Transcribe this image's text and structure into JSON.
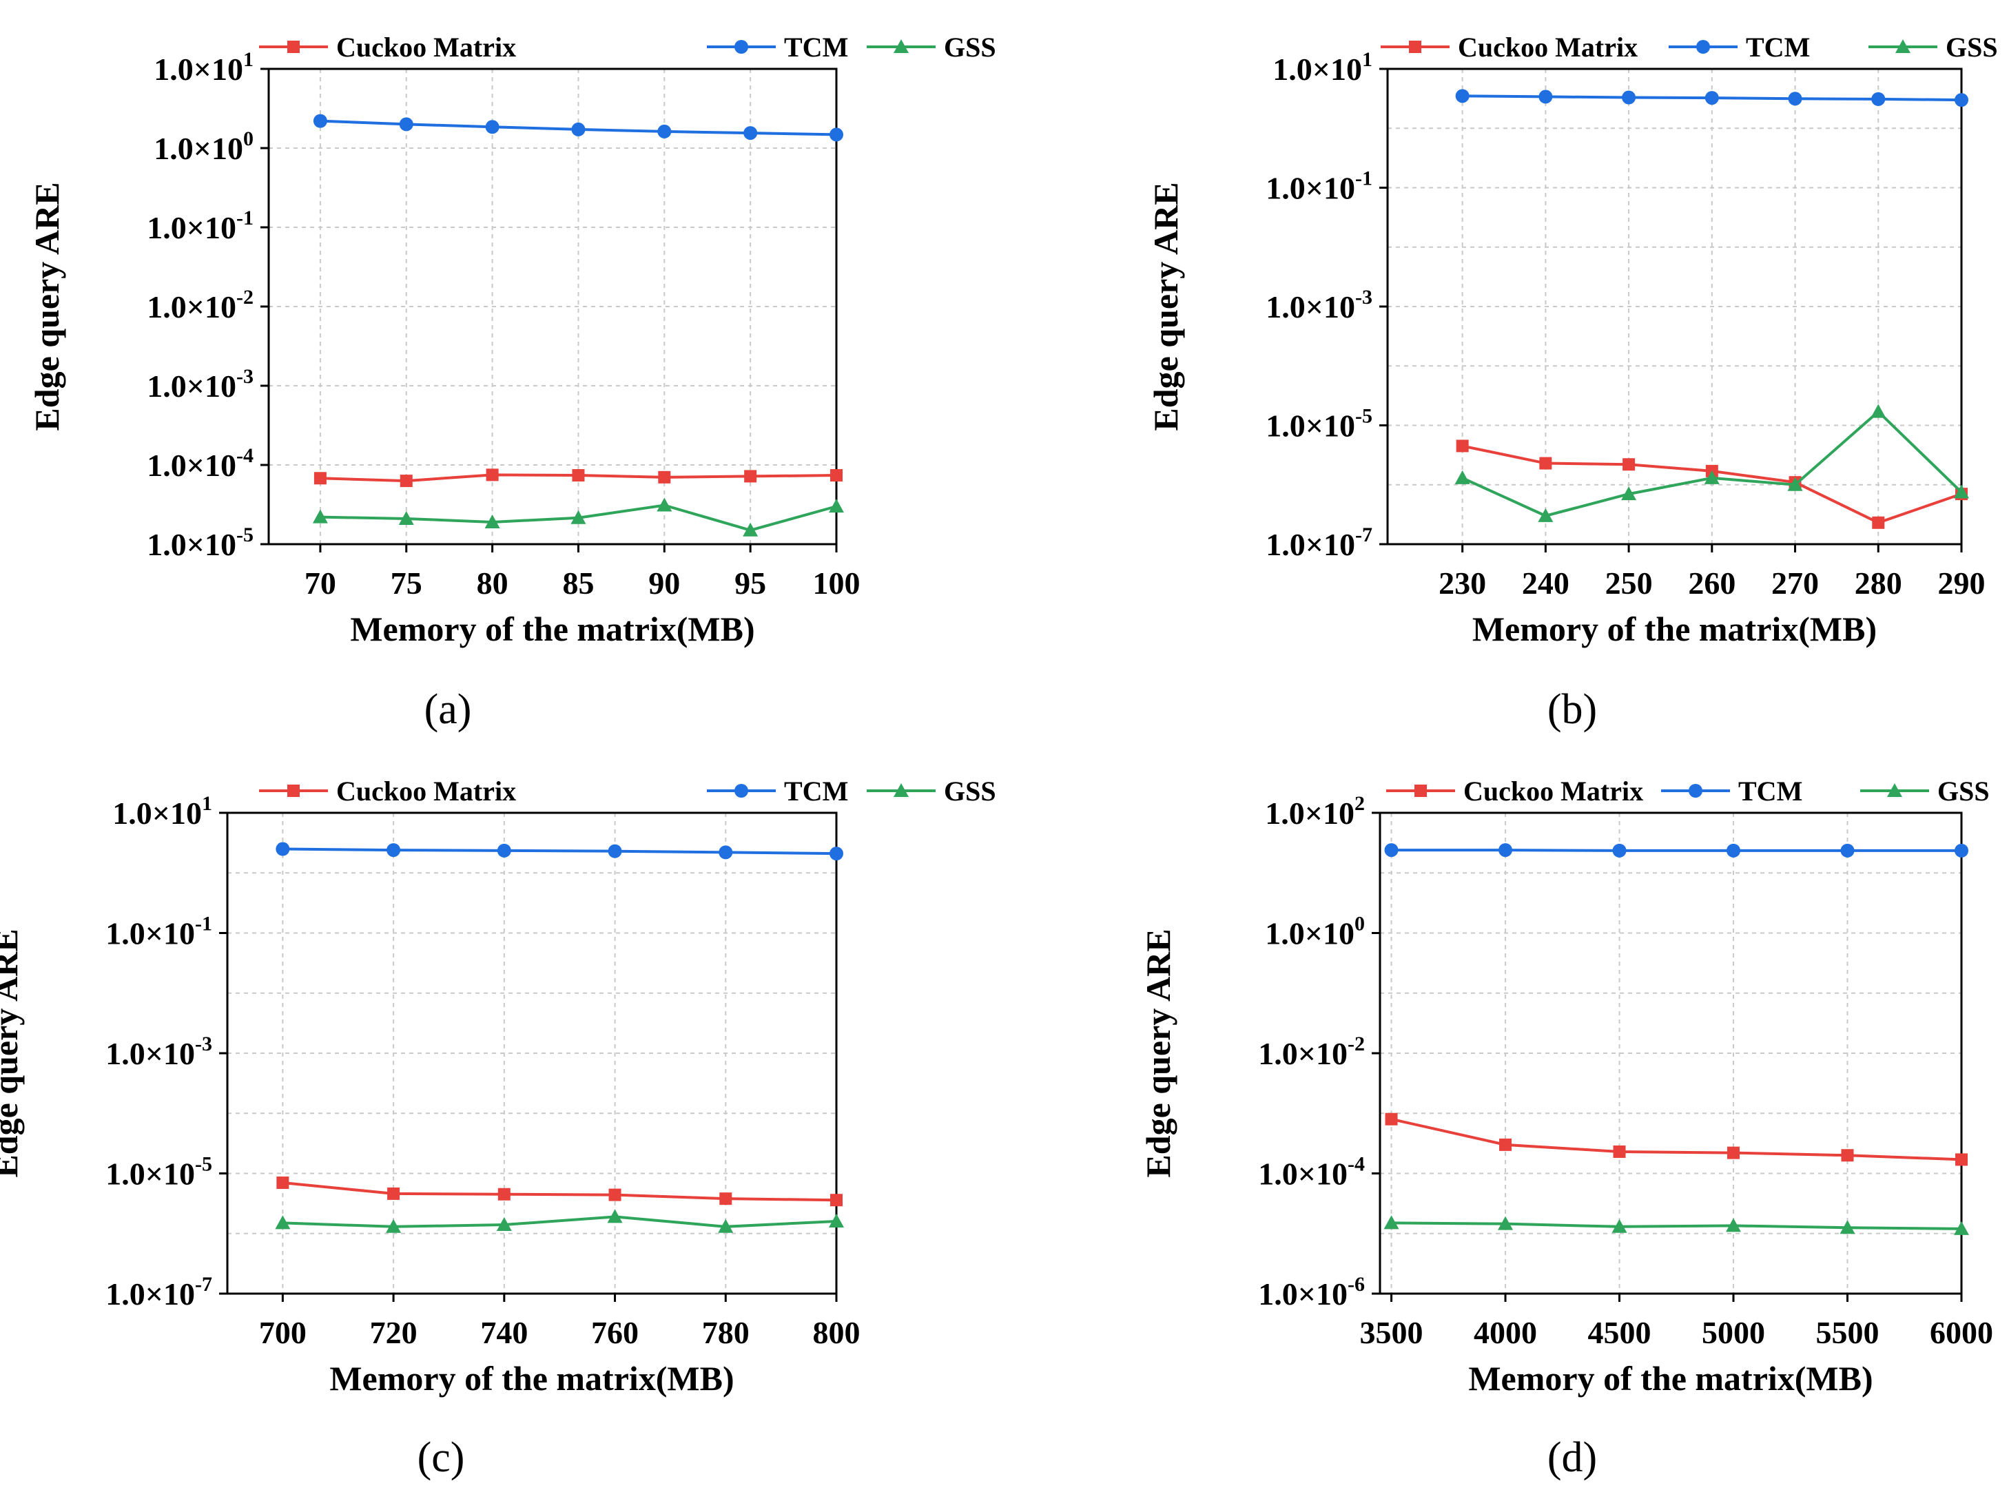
{
  "figure": {
    "panels": [
      "(a)",
      "(b)",
      "(c)",
      "(d)"
    ]
  },
  "colors": {
    "Cuckoo Matrix": "#e8413b",
    "TCM": "#1f6fe0",
    "GSS": "#2fa55b"
  },
  "chart_data": [
    {
      "type": "line",
      "panel_label": "(a)",
      "title": "",
      "xlabel": "Memory of the matrix(MB)",
      "ylabel": "Edge query ARE",
      "yscale": "log",
      "xlim": [
        67,
        100
      ],
      "ylim": [
        1e-05,
        10
      ],
      "x": [
        70,
        75,
        80,
        85,
        90,
        95,
        100
      ],
      "xticks": [
        70,
        75,
        80,
        85,
        90,
        95,
        100
      ],
      "yticks": [
        {
          "label": "1.0×10",
          "exp": "1",
          "value": 10
        },
        {
          "label": "1.0×10",
          "exp": "0",
          "value": 1
        },
        {
          "label": "1.0×10",
          "exp": "-1",
          "value": 0.1
        },
        {
          "label": "1.0×10",
          "exp": "-2",
          "value": 0.01
        },
        {
          "label": "1.0×10",
          "exp": "-3",
          "value": 0.001
        },
        {
          "label": "1.0×10",
          "exp": "-4",
          "value": 0.0001
        },
        {
          "label": "1.0×10",
          "exp": "-5",
          "value": 1e-05
        }
      ],
      "legend": "top",
      "grid": true,
      "series": [
        {
          "name": "Cuckoo Matrix",
          "marker": "square",
          "values": [
            6.8e-05,
            6.3e-05,
            7.5e-05,
            7.4e-05,
            7e-05,
            7.2e-05,
            7.4e-05
          ]
        },
        {
          "name": "TCM",
          "marker": "circle",
          "values": [
            2.2,
            2.0,
            1.85,
            1.72,
            1.62,
            1.55,
            1.48
          ]
        },
        {
          "name": "GSS",
          "marker": "triangle",
          "values": [
            2.2e-05,
            2.1e-05,
            1.9e-05,
            2.15e-05,
            3.1e-05,
            1.5e-05,
            3e-05
          ]
        }
      ]
    },
    {
      "type": "line",
      "panel_label": "(b)",
      "title": "",
      "xlabel": "Memory of the matrix(MB)",
      "ylabel": "Edge query ARE",
      "yscale": "log",
      "xlim": [
        221,
        290
      ],
      "ylim": [
        1e-07,
        10
      ],
      "x": [
        230,
        240,
        250,
        260,
        270,
        280,
        290
      ],
      "xticks": [
        230,
        240,
        250,
        260,
        270,
        280,
        290
      ],
      "yticks": [
        {
          "label": "1.0×10",
          "exp": "1",
          "value": 10
        },
        {
          "label": "1.0×10",
          "exp": "-1",
          "value": 0.1
        },
        {
          "label": "1.0×10",
          "exp": "-3",
          "value": 0.001
        },
        {
          "label": "1.0×10",
          "exp": "-5",
          "value": 1e-05
        },
        {
          "label": "1.0×10",
          "exp": "-7",
          "value": 1e-07
        }
      ],
      "legend": "top",
      "grid": true,
      "series": [
        {
          "name": "Cuckoo Matrix",
          "marker": "square",
          "values": [
            4.5e-06,
            2.3e-06,
            2.2e-06,
            1.7e-06,
            1.1e-06,
            2.3e-07,
            7e-07
          ]
        },
        {
          "name": "TCM",
          "marker": "circle",
          "values": [
            3.5,
            3.4,
            3.3,
            3.25,
            3.15,
            3.1,
            3.0
          ]
        },
        {
          "name": "GSS",
          "marker": "triangle",
          "values": [
            1.3e-06,
            3e-07,
            7e-07,
            1.3e-06,
            1e-06,
            1.7e-05,
            7.5e-07
          ]
        }
      ]
    },
    {
      "type": "line",
      "panel_label": "(c)",
      "title": "",
      "xlabel": "Memory of the matrix(MB)",
      "ylabel": "Edge query ARE",
      "yscale": "log",
      "xlim": [
        690,
        800
      ],
      "ylim": [
        1e-07,
        10
      ],
      "x": [
        700,
        720,
        740,
        760,
        780,
        800
      ],
      "xticks": [
        700,
        720,
        740,
        760,
        780,
        800
      ],
      "yticks": [
        {
          "label": "1.0×10",
          "exp": "1",
          "value": 10
        },
        {
          "label": "1.0×10",
          "exp": "-1",
          "value": 0.1
        },
        {
          "label": "1.0×10",
          "exp": "-3",
          "value": 0.001
        },
        {
          "label": "1.0×10",
          "exp": "-5",
          "value": 1e-05
        },
        {
          "label": "1.0×10",
          "exp": "-7",
          "value": 1e-07
        }
      ],
      "legend": "top",
      "grid": true,
      "series": [
        {
          "name": "Cuckoo Matrix",
          "marker": "square",
          "values": [
            7e-06,
            4.6e-06,
            4.5e-06,
            4.4e-06,
            3.8e-06,
            3.6e-06
          ]
        },
        {
          "name": "TCM",
          "marker": "circle",
          "values": [
            2.5,
            2.4,
            2.35,
            2.3,
            2.2,
            2.1
          ]
        },
        {
          "name": "GSS",
          "marker": "triangle",
          "values": [
            1.5e-06,
            1.3e-06,
            1.4e-06,
            1.9e-06,
            1.3e-06,
            1.6e-06
          ]
        }
      ]
    },
    {
      "type": "line",
      "panel_label": "(d)",
      "title": "",
      "xlabel": "Memory of the matrix(MB)",
      "ylabel": "Edge query ARE",
      "yscale": "log",
      "xlim": [
        3450,
        6000
      ],
      "ylim": [
        1e-06,
        100
      ],
      "x": [
        3500,
        4000,
        4500,
        5000,
        5500,
        6000
      ],
      "xticks": [
        3500,
        4000,
        4500,
        5000,
        5500,
        6000
      ],
      "yticks": [
        {
          "label": "1.0×10",
          "exp": "2",
          "value": 100
        },
        {
          "label": "1.0×10",
          "exp": "0",
          "value": 1
        },
        {
          "label": "1.0×10",
          "exp": "-2",
          "value": 0.01
        },
        {
          "label": "1.0×10",
          "exp": "-4",
          "value": 0.0001
        },
        {
          "label": "1.0×10",
          "exp": "-6",
          "value": 1e-06
        }
      ],
      "legend": "top",
      "grid": true,
      "series": [
        {
          "name": "Cuckoo Matrix",
          "marker": "square",
          "values": [
            0.0008,
            0.0003,
            0.00023,
            0.00022,
            0.0002,
            0.00017
          ]
        },
        {
          "name": "TCM",
          "marker": "circle",
          "values": [
            24,
            24,
            23.5,
            23.5,
            23.5,
            23.5
          ]
        },
        {
          "name": "GSS",
          "marker": "triangle",
          "values": [
            1.5e-05,
            1.45e-05,
            1.3e-05,
            1.35e-05,
            1.25e-05,
            1.2e-05
          ]
        }
      ]
    }
  ]
}
